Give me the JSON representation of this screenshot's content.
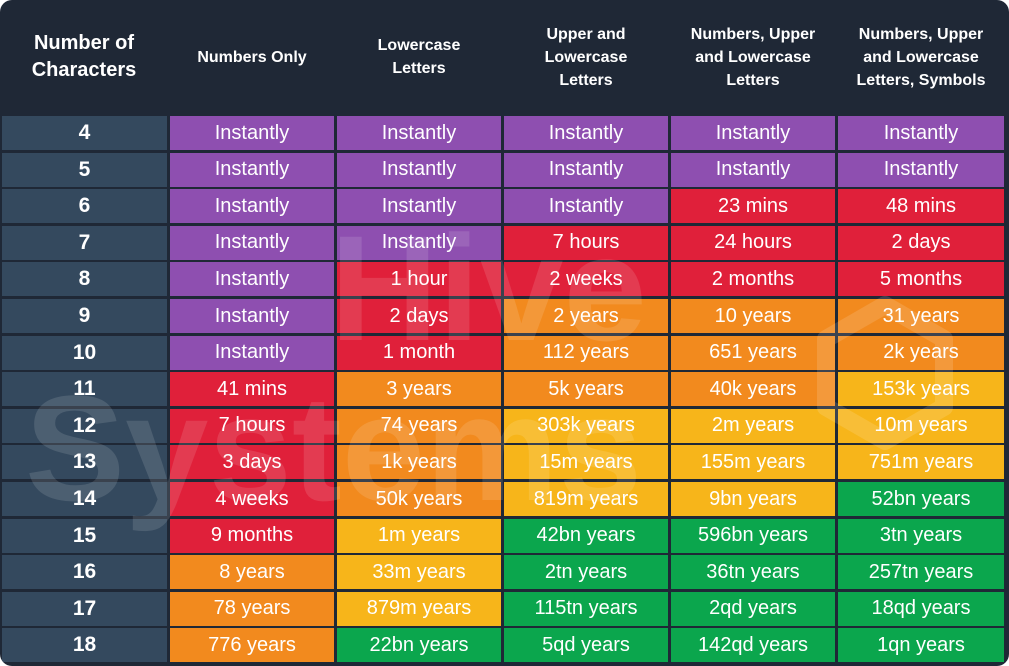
{
  "chart_data": {
    "type": "table",
    "corner_header": "Number of\nCharacters",
    "column_headers": [
      "Numbers Only",
      "Lowercase\nLetters",
      "Upper and\nLowercase\nLetters",
      "Numbers, Upper\nand Lowercase\nLetters",
      "Numbers, Upper\nand Lowercase\nLetters, Symbols"
    ],
    "row_labels": [
      "4",
      "5",
      "6",
      "7",
      "8",
      "9",
      "10",
      "11",
      "12",
      "13",
      "14",
      "15",
      "16",
      "17",
      "18"
    ],
    "cells": [
      [
        "Instantly",
        "Instantly",
        "Instantly",
        "Instantly",
        "Instantly"
      ],
      [
        "Instantly",
        "Instantly",
        "Instantly",
        "Instantly",
        "Instantly"
      ],
      [
        "Instantly",
        "Instantly",
        "Instantly",
        "23 mins",
        "48 mins"
      ],
      [
        "Instantly",
        "Instantly",
        "7 hours",
        "24 hours",
        "2 days"
      ],
      [
        "Instantly",
        "1 hour",
        "2 weeks",
        "2 months",
        "5 months"
      ],
      [
        "Instantly",
        "2 days",
        "2 years",
        "10 years",
        "31 years"
      ],
      [
        "Instantly",
        "1 month",
        "112 years",
        "651 years",
        "2k years"
      ],
      [
        "41 mins",
        "3 years",
        "5k years",
        "40k years",
        "153k years"
      ],
      [
        "7 hours",
        "74 years",
        "303k years",
        "2m years",
        "10m years"
      ],
      [
        "3 days",
        "1k years",
        "15m years",
        "155m years",
        "751m years"
      ],
      [
        "4 weeks",
        "50k years",
        "819m years",
        "9bn years",
        "52bn years"
      ],
      [
        "9 months",
        "1m years",
        "42bn years",
        "596bn years",
        "3tn years"
      ],
      [
        "8 years",
        "33m years",
        "2tn years",
        "36tn years",
        "257tn years"
      ],
      [
        "78 years",
        "879m years",
        "115tn years",
        "2qd years",
        "18qd years"
      ],
      [
        "776 years",
        "22bn years",
        "5qd years",
        "142qd years",
        "1qn years"
      ]
    ],
    "cell_colors": [
      [
        "purple",
        "purple",
        "purple",
        "purple",
        "purple"
      ],
      [
        "purple",
        "purple",
        "purple",
        "purple",
        "purple"
      ],
      [
        "purple",
        "purple",
        "purple",
        "red",
        "red"
      ],
      [
        "purple",
        "purple",
        "red",
        "red",
        "red"
      ],
      [
        "purple",
        "red",
        "red",
        "red",
        "red"
      ],
      [
        "purple",
        "red",
        "orange",
        "orange",
        "orange"
      ],
      [
        "purple",
        "red",
        "orange",
        "orange",
        "orange"
      ],
      [
        "red",
        "orange",
        "orange",
        "orange",
        "yellow"
      ],
      [
        "red",
        "orange",
        "yellow",
        "yellow",
        "yellow"
      ],
      [
        "red",
        "orange",
        "yellow",
        "yellow",
        "yellow"
      ],
      [
        "red",
        "orange",
        "yellow",
        "yellow",
        "green"
      ],
      [
        "red",
        "yellow",
        "green",
        "green",
        "green"
      ],
      [
        "orange",
        "yellow",
        "green",
        "green",
        "green"
      ],
      [
        "orange",
        "yellow",
        "green",
        "green",
        "green"
      ],
      [
        "orange",
        "green",
        "green",
        "green",
        "green"
      ]
    ]
  },
  "palette": {
    "frame": "#1f2836",
    "rowlabel": "#34495e",
    "purple": "#8e4fb0",
    "red": "#e0203a",
    "orange": "#f28a1e",
    "yellow": "#f7b51a",
    "green": "#0ba64d",
    "text": "#ffffff"
  },
  "watermark": {
    "line1": "Hive",
    "line2": "Systems"
  }
}
